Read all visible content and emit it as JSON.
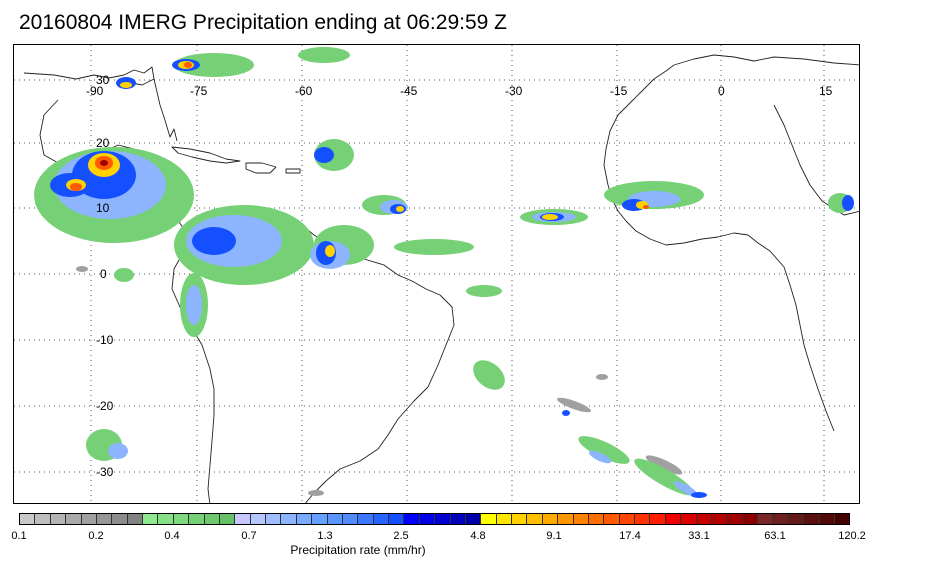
{
  "title": "20160804 IMERG Precipitation ending at 06:29:59 Z",
  "map": {
    "lon_labels": [
      "-90",
      "-75",
      "-60",
      "-45",
      "-30",
      "-15",
      "0",
      "15"
    ],
    "lat_labels": [
      "30",
      "20",
      "10",
      "0",
      "-10",
      "-20",
      "-30"
    ],
    "grid_style": "dotted"
  },
  "colorbar": {
    "title": "Precipitation rate (mm/hr)",
    "tick_labels": [
      "0.1",
      "0.2",
      "0.4",
      "0.7",
      "1.3",
      "2.5",
      "4.8",
      "9.1",
      "17.4",
      "33.1",
      "63.1",
      "120.2"
    ],
    "colors": [
      "#c8c8c8",
      "#bebebe",
      "#b4b4b4",
      "#aaaaaa",
      "#a0a0a0",
      "#969696",
      "#8c8c8c",
      "#828282",
      "#8ee88e",
      "#86e086",
      "#7ed87e",
      "#76d076",
      "#6ec86e",
      "#66c066",
      "#c8c8ff",
      "#b4c8ff",
      "#a0beff",
      "#8cb4ff",
      "#78aaff",
      "#64a0ff",
      "#5a96ff",
      "#508cff",
      "#3c78ff",
      "#2864ff",
      "#1450ff",
      "#0000ff",
      "#0000e6",
      "#0000d2",
      "#0000be",
      "#0000aa",
      "#ffff00",
      "#ffe600",
      "#ffd200",
      "#ffbe00",
      "#ffaa00",
      "#ff9600",
      "#ff8200",
      "#ff6e00",
      "#ff5a00",
      "#ff4600",
      "#ff3200",
      "#ff1e00",
      "#f00000",
      "#dc0000",
      "#c80000",
      "#b40000",
      "#a00000",
      "#8c0000",
      "#782828",
      "#6e2020",
      "#641818",
      "#5a1010",
      "#500808",
      "#460000"
    ]
  },
  "legend_colors": {
    "gray": "#a0a0a0",
    "green": "#76d076",
    "lightblue": "#8cb4ff",
    "blue": "#1450ff",
    "yellow": "#ffff00",
    "orange": "#ff9600",
    "red": "#f00000",
    "darkred": "#8c0000"
  }
}
